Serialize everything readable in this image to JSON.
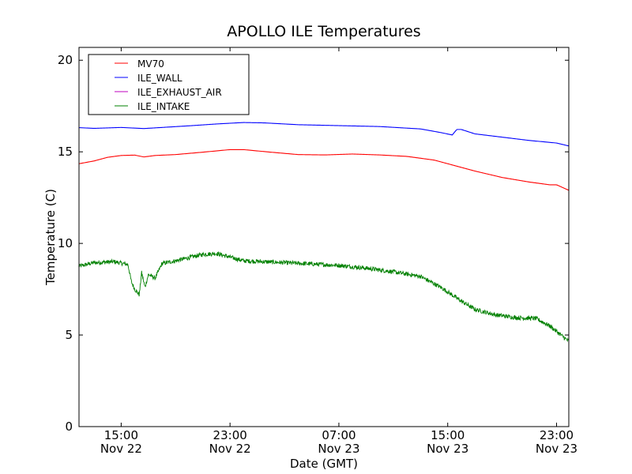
{
  "chart_data": {
    "type": "line",
    "title": "APOLLO ILE Temperatures",
    "xlabel": "Date (GMT)",
    "ylabel": "Temperature (C)",
    "ylim": [
      0,
      20.7
    ],
    "xlim": [
      "Nov 22 11:54",
      "Nov 23 23:54"
    ],
    "grid": false,
    "legend": "top-left",
    "y_ticks": [
      "0",
      "5",
      "10",
      "15",
      "20"
    ],
    "x_ticks": [
      {
        "time": "Nov 22 15:00",
        "line1": "15:00",
        "line2": "Nov 22"
      },
      {
        "time": "Nov 22 23:00",
        "line1": "23:00",
        "line2": "Nov 22"
      },
      {
        "time": "Nov 23 07:00",
        "line1": "07:00",
        "line2": "Nov 23"
      },
      {
        "time": "Nov 23 15:00",
        "line1": "15:00",
        "line2": "Nov 23"
      },
      {
        "time": "Nov 23 23:00",
        "line1": "23:00",
        "line2": "Nov 23"
      }
    ],
    "series": [
      {
        "name": "MV70",
        "color": "#ff0000",
        "noise": 0,
        "points": [
          [
            "Nov 22 11:54",
            14.35
          ],
          [
            "Nov 22 13:00",
            14.5
          ],
          [
            "Nov 22 14:00",
            14.7
          ],
          [
            "Nov 22 15:00",
            14.8
          ],
          [
            "Nov 22 16:00",
            14.82
          ],
          [
            "Nov 22 16:40",
            14.72
          ],
          [
            "Nov 22 17:30",
            14.8
          ],
          [
            "Nov 22 19:00",
            14.85
          ],
          [
            "Nov 22 21:00",
            14.98
          ],
          [
            "Nov 22 23:00",
            15.12
          ],
          [
            "Nov 23 00:00",
            15.12
          ],
          [
            "Nov 23 02:00",
            14.98
          ],
          [
            "Nov 23 04:00",
            14.85
          ],
          [
            "Nov 23 06:00",
            14.83
          ],
          [
            "Nov 23 08:00",
            14.88
          ],
          [
            "Nov 23 10:00",
            14.83
          ],
          [
            "Nov 23 12:00",
            14.75
          ],
          [
            "Nov 23 14:00",
            14.55
          ],
          [
            "Nov 23 15:00",
            14.35
          ],
          [
            "Nov 23 17:00",
            13.95
          ],
          [
            "Nov 23 19:00",
            13.6
          ],
          [
            "Nov 23 21:00",
            13.35
          ],
          [
            "Nov 23 22:30",
            13.2
          ],
          [
            "Nov 23 23:00",
            13.2
          ],
          [
            "Nov 23 23:54",
            12.9
          ]
        ]
      },
      {
        "name": "ILE_WALL",
        "color": "#0000ff",
        "noise": 0,
        "points": [
          [
            "Nov 22 11:54",
            16.32
          ],
          [
            "Nov 22 13:00",
            16.28
          ],
          [
            "Nov 22 15:00",
            16.33
          ],
          [
            "Nov 22 16:40",
            16.27
          ],
          [
            "Nov 22 18:00",
            16.33
          ],
          [
            "Nov 22 20:00",
            16.42
          ],
          [
            "Nov 22 22:00",
            16.52
          ],
          [
            "Nov 23 00:00",
            16.6
          ],
          [
            "Nov 23 01:30",
            16.58
          ],
          [
            "Nov 23 04:00",
            16.48
          ],
          [
            "Nov 23 07:00",
            16.43
          ],
          [
            "Nov 23 10:00",
            16.38
          ],
          [
            "Nov 23 13:00",
            16.25
          ],
          [
            "Nov 23 14:30",
            16.05
          ],
          [
            "Nov 23 15:20",
            15.92
          ],
          [
            "Nov 23 15:40",
            16.22
          ],
          [
            "Nov 23 16:00",
            16.22
          ],
          [
            "Nov 23 17:00",
            15.98
          ],
          [
            "Nov 23 19:00",
            15.8
          ],
          [
            "Nov 23 21:00",
            15.62
          ],
          [
            "Nov 23 23:00",
            15.48
          ],
          [
            "Nov 23 23:54",
            15.32
          ]
        ]
      },
      {
        "name": "ILE_EXHAUST_AIR",
        "color": "#bf00bf",
        "noise": 0,
        "points": []
      },
      {
        "name": "ILE_INTAKE",
        "color": "#008000",
        "noise": 0.12,
        "points": [
          [
            "Nov 22 11:54",
            8.75
          ],
          [
            "Nov 22 13:00",
            8.95
          ],
          [
            "Nov 22 14:30",
            9.0
          ],
          [
            "Nov 22 15:30",
            8.85
          ],
          [
            "Nov 22 15:45",
            7.9
          ],
          [
            "Nov 22 16:00",
            7.5
          ],
          [
            "Nov 22 16:20",
            7.2
          ],
          [
            "Nov 22 16:30",
            8.4
          ],
          [
            "Nov 22 16:45",
            7.6
          ],
          [
            "Nov 22 17:00",
            8.3
          ],
          [
            "Nov 22 17:30",
            8.1
          ],
          [
            "Nov 22 18:00",
            8.9
          ],
          [
            "Nov 22 19:00",
            9.05
          ],
          [
            "Nov 22 21:00",
            9.4
          ],
          [
            "Nov 22 22:00",
            9.45
          ],
          [
            "Nov 23 00:00",
            9.05
          ],
          [
            "Nov 23 03:00",
            8.95
          ],
          [
            "Nov 23 07:00",
            8.8
          ],
          [
            "Nov 23 09:00",
            8.65
          ],
          [
            "Nov 23 11:00",
            8.45
          ],
          [
            "Nov 23 13:00",
            8.2
          ],
          [
            "Nov 23 14:30",
            7.6
          ],
          [
            "Nov 23 16:00",
            6.85
          ],
          [
            "Nov 23 17:00",
            6.4
          ],
          [
            "Nov 23 18:30",
            6.1
          ],
          [
            "Nov 23 20:00",
            5.95
          ],
          [
            "Nov 23 21:30",
            5.9
          ],
          [
            "Nov 23 22:30",
            5.5
          ],
          [
            "Nov 23 23:54",
            4.65
          ]
        ]
      }
    ]
  }
}
